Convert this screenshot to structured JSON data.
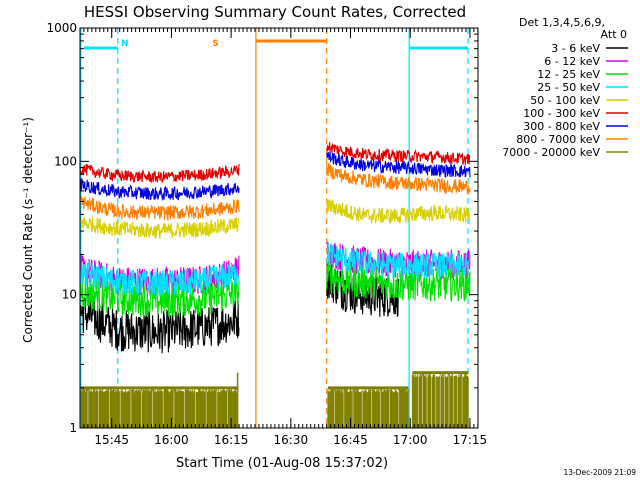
{
  "chart_data": {
    "type": "line",
    "title": "HESSI Observing Summary Count Rates, Corrected",
    "xlabel": "Start Time (01-Aug-08 15:37:02)",
    "ylabel": "Corrected Count Rate (s⁻¹ detector⁻¹)",
    "yscale": "log",
    "ylim": [
      1,
      1000
    ],
    "xlim": [
      "15:37:02",
      "17:17:00"
    ],
    "x_unit": "minutes since 15:37:02",
    "x_ticks": [
      {
        "label": "15:45",
        "min": 7.97
      },
      {
        "label": "16:00",
        "min": 22.97
      },
      {
        "label": "16:15",
        "min": 37.97
      },
      {
        "label": "16:30",
        "min": 52.97
      },
      {
        "label": "16:45",
        "min": 67.97
      },
      {
        "label": "17:00",
        "min": 82.97
      },
      {
        "label": "17:15",
        "min": 97.97
      }
    ],
    "y_ticks": [
      {
        "label": "1",
        "value": 1
      },
      {
        "label": "10",
        "value": 10
      },
      {
        "label": "100",
        "value": 100
      },
      {
        "label": "1000",
        "value": 1000
      }
    ],
    "legend_header": [
      "Det 1,3,4,5,6,9,",
      "Att 0"
    ],
    "legend_position": "right",
    "series": [
      {
        "name": "3 - 6 keV",
        "color": "#000000",
        "segments": [
          [
            [
              0,
              7.5
            ],
            [
              5,
              6.3
            ],
            [
              10,
              5.4
            ],
            [
              20,
              5.2
            ],
            [
              30,
              5.6
            ],
            [
              38,
              6.3
            ],
            [
              40,
              6.7
            ]
          ],
          [
            [
              62,
              13.5
            ],
            [
              66,
              11.0
            ],
            [
              70,
              10.0
            ],
            [
              75,
              9.7
            ],
            [
              80,
              9.8
            ]
          ]
        ]
      },
      {
        "name": "6 - 12 keV",
        "color": "#e000e0",
        "segments": [
          [
            [
              0,
              15.5
            ],
            [
              5,
              14.0
            ],
            [
              10,
              12.8
            ],
            [
              20,
              12.5
            ],
            [
              30,
              12.8
            ],
            [
              38,
              14.5
            ],
            [
              40,
              16.0
            ]
          ],
          [
            [
              62,
              21.0
            ],
            [
              66,
              19.0
            ],
            [
              72,
              17.5
            ],
            [
              80,
              17.0
            ],
            [
              90,
              17.0
            ],
            [
              98,
              17.0
            ]
          ]
        ]
      },
      {
        "name": "12 - 25 keV",
        "color": "#00e000",
        "segments": [
          [
            [
              0,
              10.5
            ],
            [
              5,
              10.0
            ],
            [
              10,
              9.3
            ],
            [
              20,
              9.0
            ],
            [
              30,
              9.3
            ],
            [
              38,
              10.0
            ],
            [
              40,
              10.5
            ]
          ],
          [
            [
              62,
              14.0
            ],
            [
              66,
              13.0
            ],
            [
              72,
              12.3
            ],
            [
              80,
              12.0
            ],
            [
              90,
              12.0
            ],
            [
              98,
              12.0
            ]
          ]
        ]
      },
      {
        "name": "25 - 50 keV",
        "color": "#00e0ff",
        "segments": [
          [
            [
              0,
              14.5
            ],
            [
              5,
              13.5
            ],
            [
              10,
              12.5
            ],
            [
              20,
              12.0
            ],
            [
              30,
              12.5
            ],
            [
              38,
              14.0
            ],
            [
              40,
              15.0
            ]
          ],
          [
            [
              62,
              20.5
            ],
            [
              66,
              18.5
            ],
            [
              72,
              17.0
            ],
            [
              80,
              16.5
            ],
            [
              90,
              16.5
            ],
            [
              98,
              16.5
            ]
          ]
        ]
      },
      {
        "name": "50 - 100 keV",
        "color": "#d8d000",
        "segments": [
          [
            [
              0,
              35
            ],
            [
              5,
              33
            ],
            [
              10,
              31
            ],
            [
              20,
              30
            ],
            [
              30,
              31
            ],
            [
              38,
              33
            ],
            [
              40,
              34
            ]
          ],
          [
            [
              62,
              47
            ],
            [
              66,
              43
            ],
            [
              72,
              39
            ],
            [
              80,
              39
            ],
            [
              85,
              40.5
            ],
            [
              90,
              41
            ],
            [
              98,
              39
            ]
          ]
        ]
      },
      {
        "name": "100 - 300 keV",
        "color": "#e00000",
        "segments": [
          [
            [
              0,
              88
            ],
            [
              5,
              82
            ],
            [
              10,
              78
            ],
            [
              20,
              76
            ],
            [
              30,
              79
            ],
            [
              38,
              84
            ],
            [
              40,
              87
            ]
          ],
          [
            [
              62,
              130
            ],
            [
              66,
              120
            ],
            [
              72,
              113
            ],
            [
              80,
              110
            ],
            [
              90,
              108
            ],
            [
              98,
              103
            ]
          ]
        ]
      },
      {
        "name": "300 - 800 keV",
        "color": "#0000e0",
        "segments": [
          [
            [
              0,
              67
            ],
            [
              5,
              62
            ],
            [
              10,
              59
            ],
            [
              20,
              57
            ],
            [
              30,
              59
            ],
            [
              38,
              62
            ],
            [
              40,
              64
            ]
          ],
          [
            [
              62,
              110
            ],
            [
              66,
              100
            ],
            [
              72,
              93
            ],
            [
              80,
              90
            ],
            [
              90,
              86
            ],
            [
              98,
              84
            ]
          ]
        ]
      },
      {
        "name": "800 - 7000 keV",
        "color": "#ff8000",
        "segments": [
          [
            [
              0,
              50
            ],
            [
              5,
              45
            ],
            [
              10,
              42
            ],
            [
              20,
              41
            ],
            [
              30,
              42
            ],
            [
              38,
              45
            ],
            [
              40,
              47
            ]
          ],
          [
            [
              62,
              87
            ],
            [
              66,
              78
            ],
            [
              72,
              72
            ],
            [
              80,
              69
            ],
            [
              90,
              66
            ],
            [
              98,
              64
            ]
          ]
        ]
      },
      {
        "name": "7000 - 20000 keV",
        "color": "#808000",
        "segments": []
      }
    ],
    "annotations": [
      {
        "label": "N",
        "color": "#00e0ff",
        "x_min": 9.5
      },
      {
        "label": "S",
        "color": "#ff8000",
        "x_min": 34.8
      }
    ],
    "timestamp": "13-Dec-2009 21:09"
  },
  "colors": {
    "axis": "#000000",
    "night": "#00e0ff",
    "saa": "#ff8000",
    "attenuator": "#808000",
    "background": "#ffffff"
  }
}
